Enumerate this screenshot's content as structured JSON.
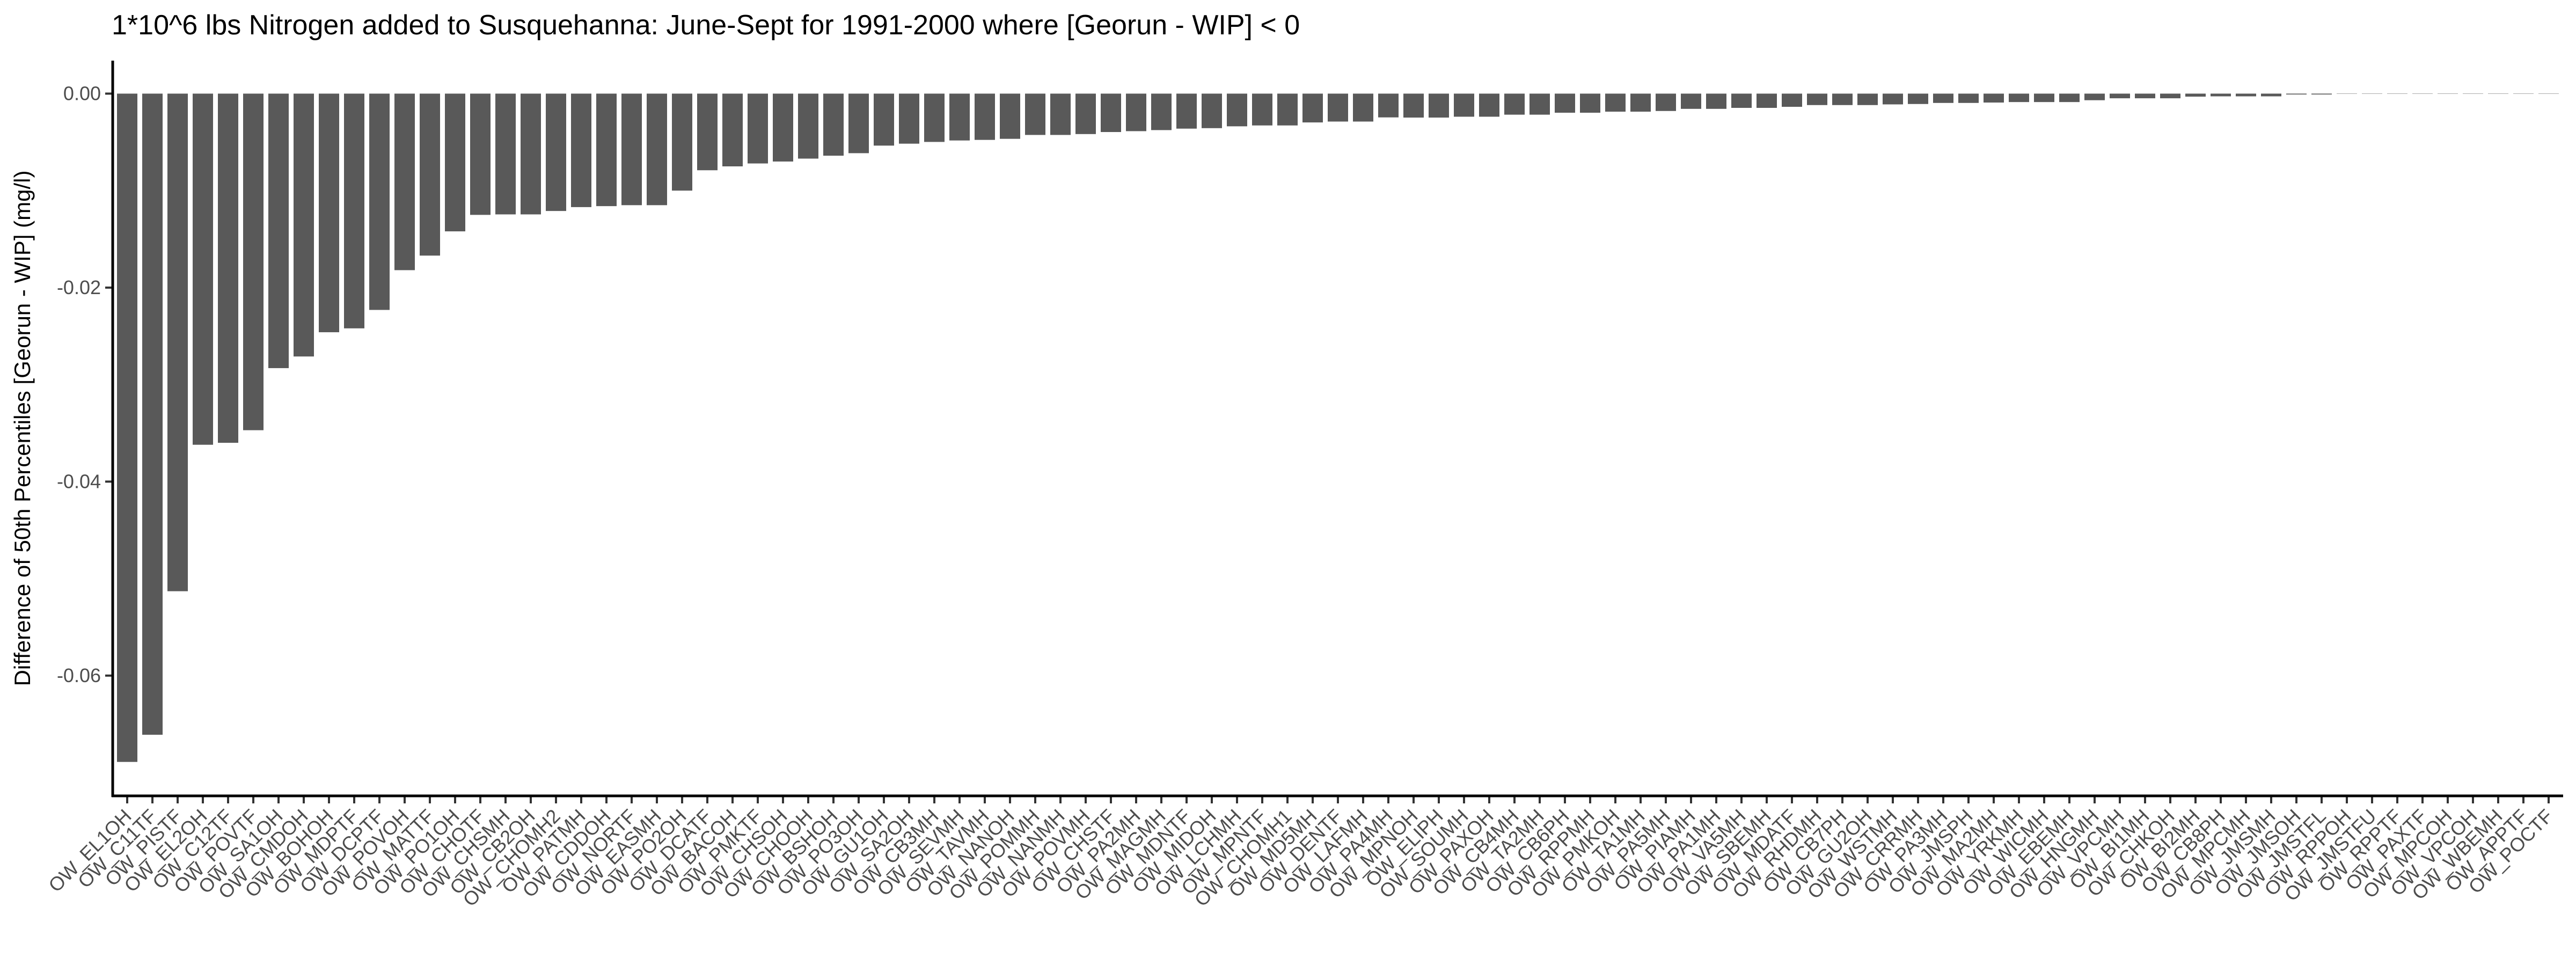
{
  "chart_data": {
    "type": "bar",
    "title": "1*10^6 lbs Nitrogen added to Susquehanna: June-Sept for 1991-2000 where [Georun - WIP] < 0",
    "xlabel": "",
    "ylabel": "Difference of 50th Percentiles [Georun - WIP] (mg/l)",
    "ylim": [
      -0.0724,
      0.0034
    ],
    "yticks": [
      0.0,
      -0.02,
      -0.04,
      -0.06
    ],
    "ytick_labels": [
      "0.00",
      "-0.02",
      "-0.04",
      "-0.06"
    ],
    "grid": false,
    "bar_color": "#595959",
    "categories": [
      "OW_EL1OH",
      "OW_C11TF",
      "OW_PISTF",
      "OW_EL2OH",
      "OW_C12TF",
      "OW_POVTF",
      "OW_SA1OH",
      "OW_CMDOH",
      "OW_BOHOH",
      "OW_MDPTF",
      "OW_DCPTF",
      "OW_POVOH",
      "OW_MATTF",
      "OW_PO1OH",
      "OW_CHOTF",
      "OW_CHSMH",
      "OW_CB2OH",
      "OW_CHOMH2",
      "OW_PATMH",
      "OW_CDDOH",
      "OW_NORTF",
      "OW_EASMH",
      "OW_PO2OH",
      "OW_DCATF",
      "OW_BACOH",
      "OW_PMKTF",
      "OW_CHSOH",
      "OW_CHOOH",
      "OW_BSHOH",
      "OW_PO3OH",
      "OW_GU1OH",
      "OW_SA2OH",
      "OW_CB3MH",
      "OW_SEVMH",
      "OW_TAVMH",
      "OW_NANOH",
      "OW_POMMH",
      "OW_NANMH",
      "OW_POVMH",
      "OW_CHSTF",
      "OW_PA2MH",
      "OW_MAGMH",
      "OW_MDNTF",
      "OW_MIDOH",
      "OW_LCHMH",
      "OW_MPNTF",
      "OW_CHOMH1",
      "OW_MD5MH",
      "OW_DENTF",
      "OW_LAFMH",
      "OW_PA4MH",
      "OW_MPNOH",
      "OW_ELIPH",
      "OW_SOUMH",
      "OW_PAXOH",
      "OW_CB4MH",
      "OW_TA2MH",
      "OW_CB6PH",
      "OW_RPPMH",
      "OW_PMKOH",
      "OW_TA1MH",
      "OW_PA5MH",
      "OW_PIAMH",
      "OW_PA1MH",
      "OW_VA5MH",
      "OW_SBEMH",
      "OW_MDATF",
      "OW_RHDMH",
      "OW_CB7PH",
      "OW_GU2OH",
      "OW_WSTMH",
      "OW_CRRMH",
      "OW_PA3MH",
      "OW_JMSPH",
      "OW_MA2MH",
      "OW_YRKMH",
      "OW_WICMH",
      "OW_EBEMH",
      "OW_HNGMH",
      "OW_VPCMH",
      "OW_BI1MH",
      "OW_CHKOH",
      "OW_BI2MH",
      "OW_CB8PH",
      "OW_MPCMH",
      "OW_JMSMH",
      "OW_JMSOH",
      "OW_JMSTFL",
      "OW_RPPOH",
      "OW_JMSTFU",
      "OW_RPPTF",
      "OW_PAXTF",
      "OW_MPCOH",
      "OW_VPCOH",
      "OW_WBEMH",
      "OW_APPTF",
      "OW_POCTF"
    ],
    "values": [
      -0.0689,
      -0.0661,
      -0.0513,
      -0.0362,
      -0.036,
      -0.0347,
      -0.0283,
      -0.0271,
      -0.0246,
      -0.0242,
      -0.0223,
      -0.0182,
      -0.0167,
      -0.0142,
      -0.0125,
      -0.01245,
      -0.01245,
      -0.0121,
      -0.0117,
      -0.0116,
      -0.0115,
      -0.0115,
      -0.01,
      -0.0079,
      -0.0075,
      -0.0072,
      -0.007,
      -0.0067,
      -0.0064,
      -0.00614,
      -0.00536,
      -0.00516,
      -0.00498,
      -0.00483,
      -0.00477,
      -0.00466,
      -0.00426,
      -0.00426,
      -0.00417,
      -0.00396,
      -0.00387,
      -0.00376,
      -0.00361,
      -0.00356,
      -0.00337,
      -0.00328,
      -0.00328,
      -0.00297,
      -0.00288,
      -0.00288,
      -0.00245,
      -0.00247,
      -0.00247,
      -0.00238,
      -0.00238,
      -0.00217,
      -0.00217,
      -0.00197,
      -0.00197,
      -0.00186,
      -0.00186,
      -0.00179,
      -0.00157,
      -0.00157,
      -0.00147,
      -0.00147,
      -0.00136,
      -0.00118,
      -0.00118,
      -0.00118,
      -0.00111,
      -0.00107,
      -0.00096,
      -0.00096,
      -0.00092,
      -0.00087,
      -0.00087,
      -0.00087,
      -0.00068,
      -0.00048,
      -0.00048,
      -0.00048,
      -0.00031,
      -0.00028,
      -0.00028,
      -0.00028,
      -9e-05,
      -9e-05,
      0,
      0,
      0,
      0,
      0,
      0,
      0,
      0,
      0
    ]
  }
}
